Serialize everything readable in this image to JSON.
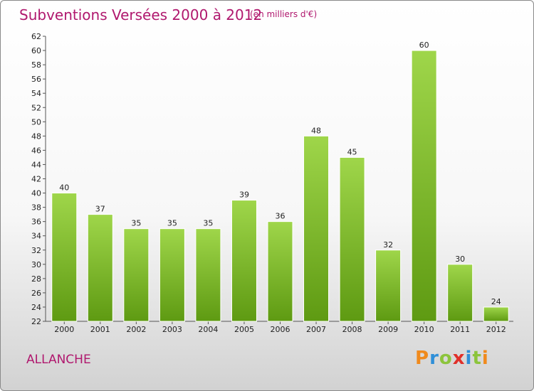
{
  "title": "Subventions Versées 2000 à 2012",
  "unit_note": "(en milliers d'€)",
  "commune": "ALLANCHE",
  "logo": {
    "letters": [
      "P",
      "r",
      "o",
      "x",
      "i",
      "t",
      "i"
    ],
    "colors": [
      "#f08a1c",
      "#2f8fd8",
      "#8cc43c",
      "#e0302a",
      "#2f8fd8",
      "#8cc43c",
      "#f08a1c"
    ]
  },
  "colors": {
    "bar_top": "#9fd64a",
    "bar_bottom": "#5e9a12",
    "accent": "#b0186e"
  },
  "chart_data": {
    "type": "bar",
    "categories": [
      "2000",
      "2001",
      "2002",
      "2003",
      "2004",
      "2005",
      "2006",
      "2007",
      "2008",
      "2009",
      "2010",
      "2011",
      "2012"
    ],
    "values": [
      40,
      37,
      35,
      35,
      35,
      39,
      36,
      48,
      45,
      32,
      60,
      30,
      24
    ],
    "ylim": [
      22,
      62
    ],
    "ytick_step": 2,
    "grid": false,
    "data_labels": true
  }
}
